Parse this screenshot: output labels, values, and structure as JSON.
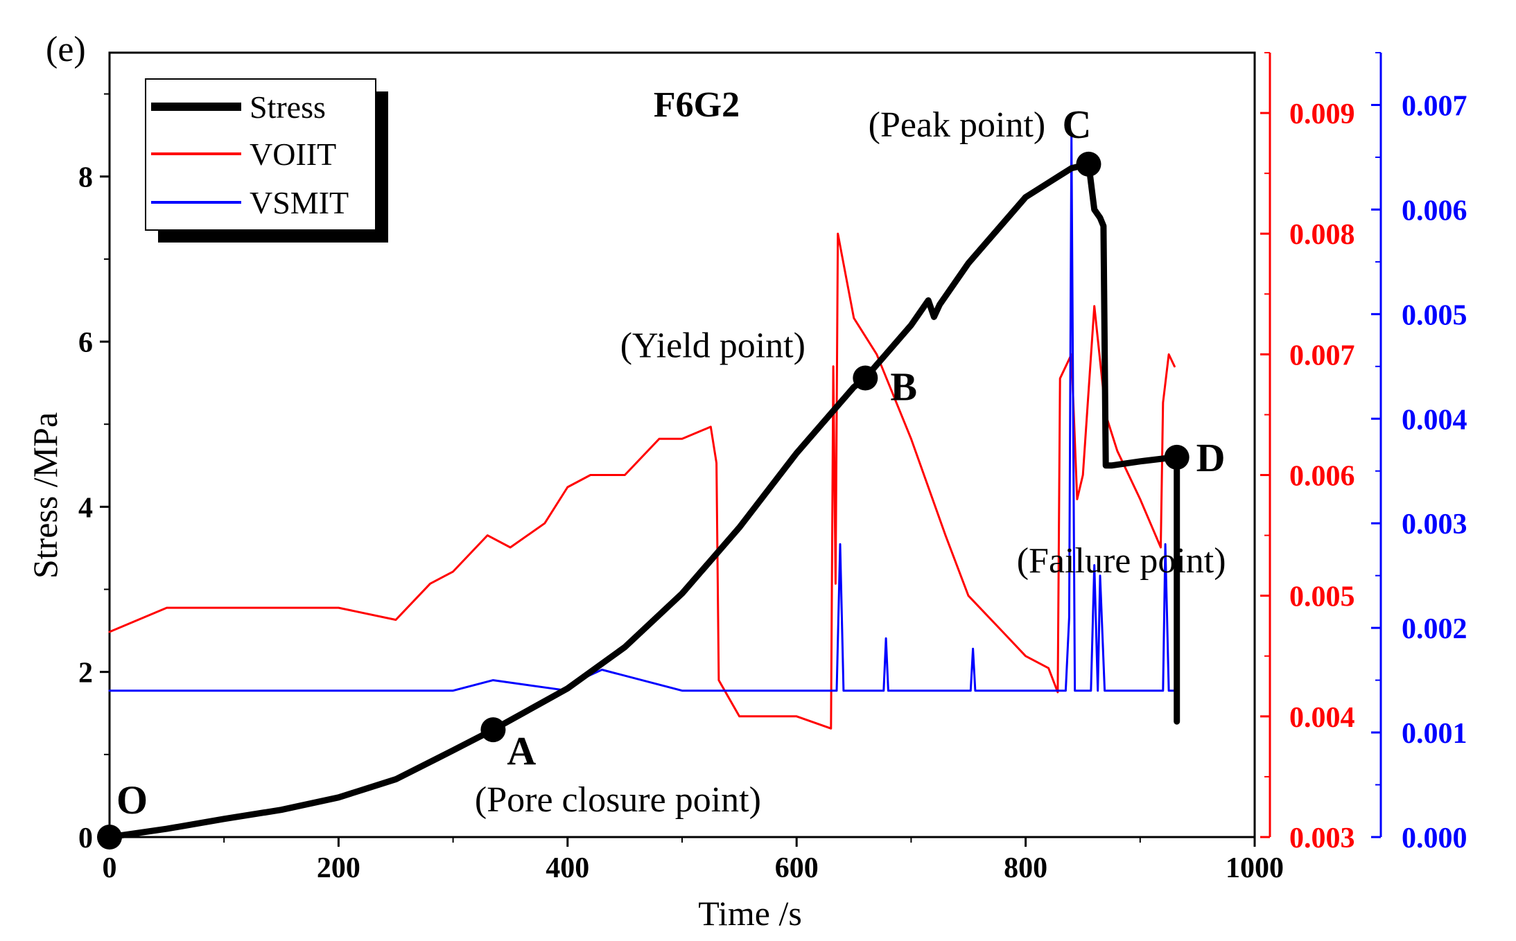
{
  "chart_data": {
    "type": "line",
    "panel_label": "(e)",
    "title": "F6G2",
    "xlabel": "Time /s",
    "ylabel": "Stress /MPa",
    "xlim": [
      0,
      1000
    ],
    "ylim": [
      0,
      9.5
    ],
    "y2lim": [
      0.003,
      0.0095
    ],
    "y3lim": [
      0.0,
      0.0075
    ],
    "colors": {
      "stress": "#000000",
      "voiit": "#ff0000",
      "vsmit": "#0000ff"
    },
    "x_ticks": [
      "0",
      "200",
      "400",
      "600",
      "800",
      "1000"
    ],
    "y_ticks": [
      "0",
      "2",
      "4",
      "6",
      "8"
    ],
    "y2_ticks": [
      "0.003",
      "0.004",
      "0.005",
      "0.006",
      "0.007",
      "0.008",
      "0.009"
    ],
    "y3_ticks": [
      "0.000",
      "0.001",
      "0.002",
      "0.003",
      "0.004",
      "0.005",
      "0.006",
      "0.007"
    ],
    "legend": {
      "position": "top-left",
      "entries": [
        "Stress",
        "VOIIT",
        "VSMIT"
      ]
    },
    "series": [
      {
        "name": "Stress",
        "axis": "y",
        "x": [
          0,
          50,
          100,
          150,
          200,
          250,
          300,
          335,
          400,
          450,
          500,
          550,
          600,
          650,
          660,
          700,
          715,
          720,
          725,
          750,
          800,
          840,
          855,
          860,
          865,
          868,
          870,
          875,
          900,
          930,
          932,
          932
        ],
        "y": [
          0,
          0.1,
          0.22,
          0.33,
          0.48,
          0.7,
          1.05,
          1.3,
          1.8,
          2.3,
          2.95,
          3.75,
          4.65,
          5.45,
          5.56,
          6.2,
          6.5,
          6.3,
          6.45,
          6.95,
          7.75,
          8.1,
          8.15,
          7.6,
          7.5,
          7.4,
          4.5,
          4.5,
          4.55,
          4.6,
          4.6,
          1.4
        ]
      },
      {
        "name": "VOIIT",
        "axis": "y2",
        "x": [
          0,
          50,
          100,
          150,
          200,
          250,
          280,
          300,
          330,
          350,
          380,
          400,
          420,
          450,
          480,
          500,
          525,
          530,
          532,
          550,
          580,
          600,
          630,
          632,
          634,
          636,
          640,
          650,
          670,
          700,
          730,
          750,
          780,
          800,
          820,
          828,
          830,
          840,
          845,
          850,
          860,
          870,
          880,
          900,
          918,
          920,
          925,
          930
        ],
        "y": [
          0.0047,
          0.0049,
          0.0049,
          0.0049,
          0.0049,
          0.0048,
          0.0051,
          0.0052,
          0.0055,
          0.0054,
          0.0056,
          0.0059,
          0.006,
          0.006,
          0.0063,
          0.0063,
          0.0064,
          0.0061,
          0.0043,
          0.004,
          0.004,
          0.004,
          0.0039,
          0.0069,
          0.0051,
          0.008,
          0.0078,
          0.0073,
          0.007,
          0.0063,
          0.0055,
          0.005,
          0.0047,
          0.0045,
          0.0044,
          0.0042,
          0.0068,
          0.007,
          0.0058,
          0.006,
          0.0074,
          0.0065,
          0.0062,
          0.0058,
          0.0054,
          0.0066,
          0.007,
          0.0069
        ]
      },
      {
        "name": "VSMIT",
        "axis": "y3",
        "x": [
          0,
          100,
          200,
          300,
          335,
          400,
          410,
          430,
          500,
          600,
          635,
          638,
          641,
          676,
          678,
          680,
          752,
          754,
          756,
          800,
          835,
          838,
          840,
          843,
          857,
          860,
          863,
          865,
          869,
          920,
          922,
          925,
          930
        ],
        "y": [
          0.0014,
          0.0014,
          0.0014,
          0.0014,
          0.0015,
          0.0014,
          0.0015,
          0.0016,
          0.0014,
          0.0014,
          0.0014,
          0.0028,
          0.0014,
          0.0014,
          0.0019,
          0.0014,
          0.0014,
          0.0018,
          0.0014,
          0.0014,
          0.0014,
          0.0021,
          0.0067,
          0.0014,
          0.0014,
          0.0026,
          0.0014,
          0.0025,
          0.0014,
          0.0014,
          0.0028,
          0.0014,
          0.0014
        ]
      }
    ],
    "markers": [
      {
        "label": "O",
        "desc": "",
        "x": 0,
        "y": 0
      },
      {
        "label": "A",
        "desc": "(Pore closure point)",
        "x": 335,
        "y": 1.3
      },
      {
        "label": "B",
        "desc": "(Yield point)",
        "x": 660,
        "y": 5.56
      },
      {
        "label": "C",
        "desc": "(Peak point)",
        "x": 855,
        "y": 8.15
      },
      {
        "label": "D",
        "desc": "(Failure point)",
        "x": 932,
        "y": 4.6
      }
    ]
  }
}
